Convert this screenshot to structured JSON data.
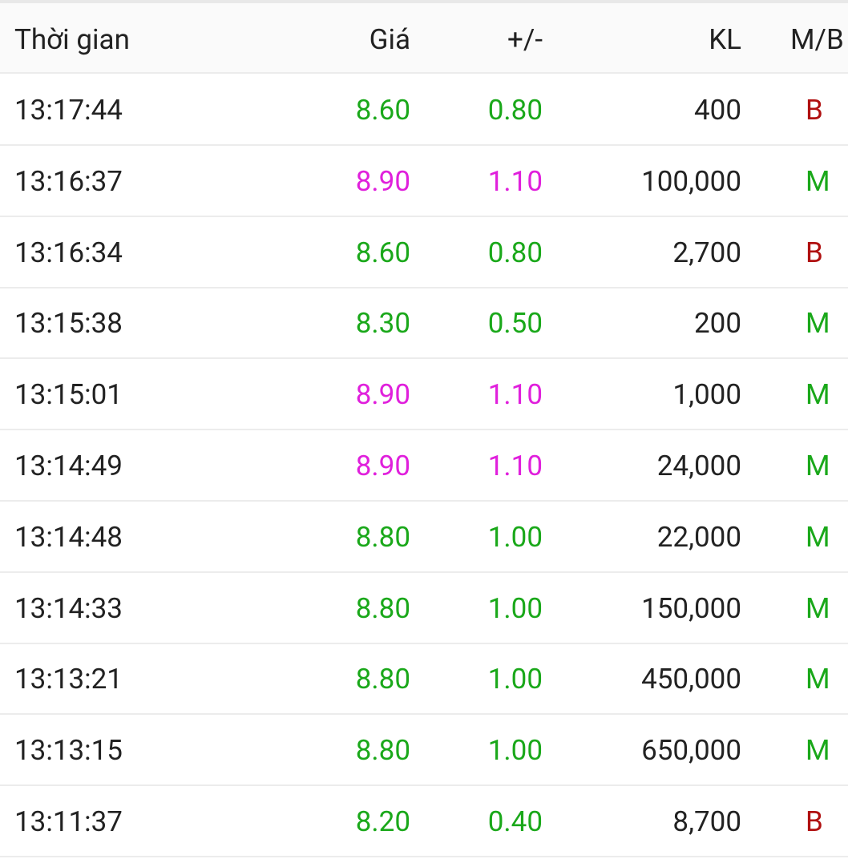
{
  "table": {
    "header": [
      "Thời gian",
      "Giá",
      "+/-",
      "KL",
      "M/B"
    ],
    "rows": [
      [
        "13:17:44",
        "8.60",
        "0.80",
        "400",
        "B"
      ],
      [
        "13:16:37",
        "8.90",
        "1.10",
        "100,000",
        "M"
      ],
      [
        "13:16:34",
        "8.60",
        "0.80",
        "2,700",
        "B"
      ],
      [
        "13:15:38",
        "8.30",
        "0.50",
        "200",
        "M"
      ],
      [
        "13:15:01",
        "8.90",
        "1.10",
        "1,000",
        "M"
      ],
      [
        "13:14:49",
        "8.90",
        "1.10",
        "24,000",
        "M"
      ],
      [
        "13:14:48",
        "8.80",
        "1.00",
        "22,000",
        "M"
      ],
      [
        "13:14:33",
        "8.80",
        "1.00",
        "150,000",
        "M"
      ],
      [
        "13:13:21",
        "8.80",
        "1.00",
        "450,000",
        "M"
      ],
      [
        "13:13:15",
        "8.80",
        "1.00",
        "650,000",
        "M"
      ],
      [
        "13:11:37",
        "8.20",
        "0.40",
        "8,700",
        "B"
      ]
    ],
    "row_colors": [
      "#1aa81a",
      "#e020dc",
      "#1aa81a",
      "#1aa81a",
      "#e020dc",
      "#e020dc",
      "#1aa81a",
      "#1aa81a",
      "#1aa81a",
      "#1aa81a",
      "#1aa81a"
    ],
    "side_colors": {
      "B": "#b01010",
      "M": "#1aa81a"
    }
  }
}
